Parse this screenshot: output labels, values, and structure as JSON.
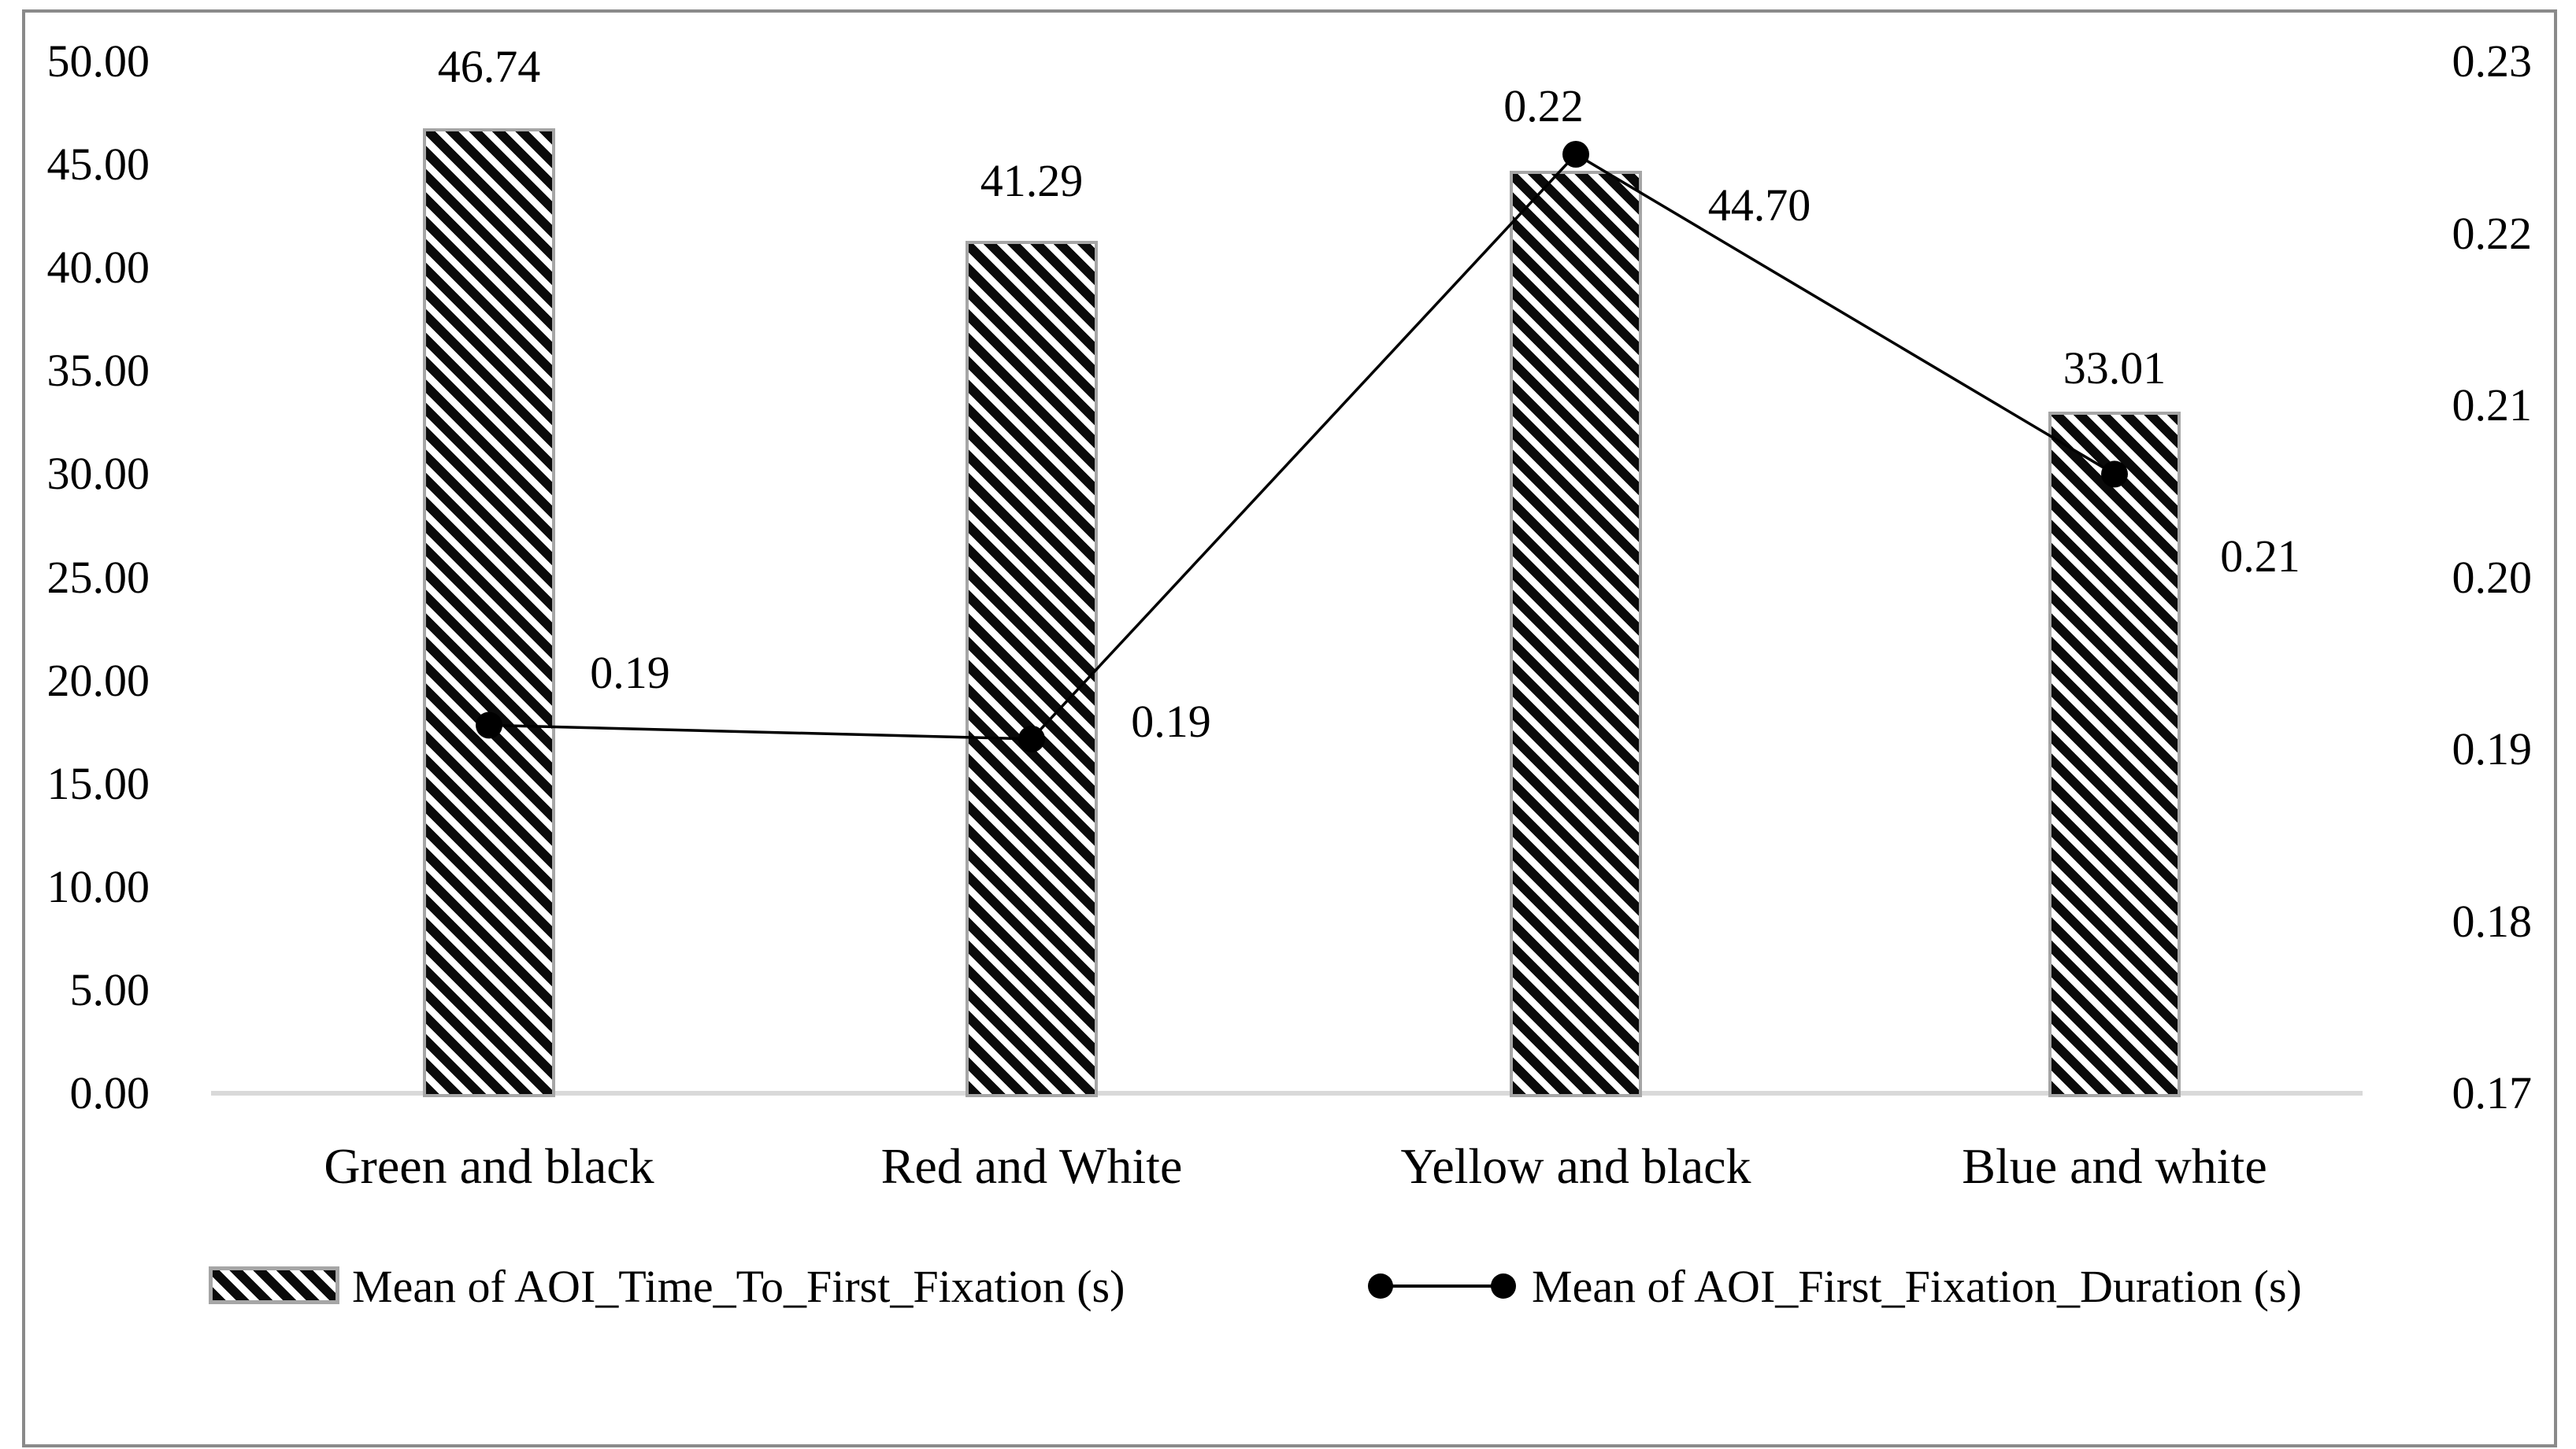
{
  "chart_data": {
    "type": "combo-bar-line-dual-axis",
    "categories": [
      "Green and black",
      "Red and White",
      "Yellow and black",
      "Blue and white"
    ],
    "series": [
      {
        "name": "Mean of AOI_Time_To_First_Fixation (s)",
        "type": "bar",
        "axis": "left",
        "values": [
          46.74,
          41.29,
          44.7,
          33.01
        ],
        "labels": [
          "46.74",
          "41.29",
          "44.70",
          "33.01"
        ],
        "label_offsets": [
          {
            "dx": 0,
            "dy": -78
          },
          {
            "dx": 0,
            "dy": -76
          },
          {
            "dx": 233,
            "dy": 44
          },
          {
            "dx": 0,
            "dy": -55
          }
        ]
      },
      {
        "name": "Mean of AOI_First_Fixation_Duration (s)",
        "type": "line",
        "axis": "right",
        "values": [
          0.19,
          0.19,
          0.22,
          0.21
        ],
        "labels": [
          "0.19",
          "0.19",
          "0.22",
          "0.21"
        ],
        "plot_values": [
          0.1914,
          0.1906,
          0.2246,
          0.206
        ],
        "label_offsets": [
          {
            "dx": 179,
            "dy": -66
          },
          {
            "dx": 177,
            "dy": -22
          },
          {
            "dx": -41,
            "dy": -61
          },
          {
            "dx": 185,
            "dy": 105
          }
        ]
      }
    ],
    "left_axis": {
      "min": 0,
      "max": 50,
      "step": 5,
      "ticks": [
        "50.00",
        "45.00",
        "40.00",
        "35.00",
        "30.00",
        "25.00",
        "20.00",
        "15.00",
        "10.00",
        "5.00",
        "0.00"
      ]
    },
    "right_axis": {
      "min": 0.17,
      "max": 0.23,
      "step": 0.01,
      "ticks": [
        "0.23",
        "0.22",
        "0.21",
        "0.20",
        "0.19",
        "0.18",
        "0.17"
      ]
    },
    "grid": false,
    "legend_position": "bottom",
    "title": ""
  },
  "styles": {
    "hatch_color": "#0a0a0a",
    "bar_border_color": "#a6a6a6",
    "axis_line_color": "#d9d9d9",
    "frame_border_color": "#8a8a8a",
    "line_color": "#000000",
    "marker_color": "#000000",
    "text_color": "#000000"
  }
}
